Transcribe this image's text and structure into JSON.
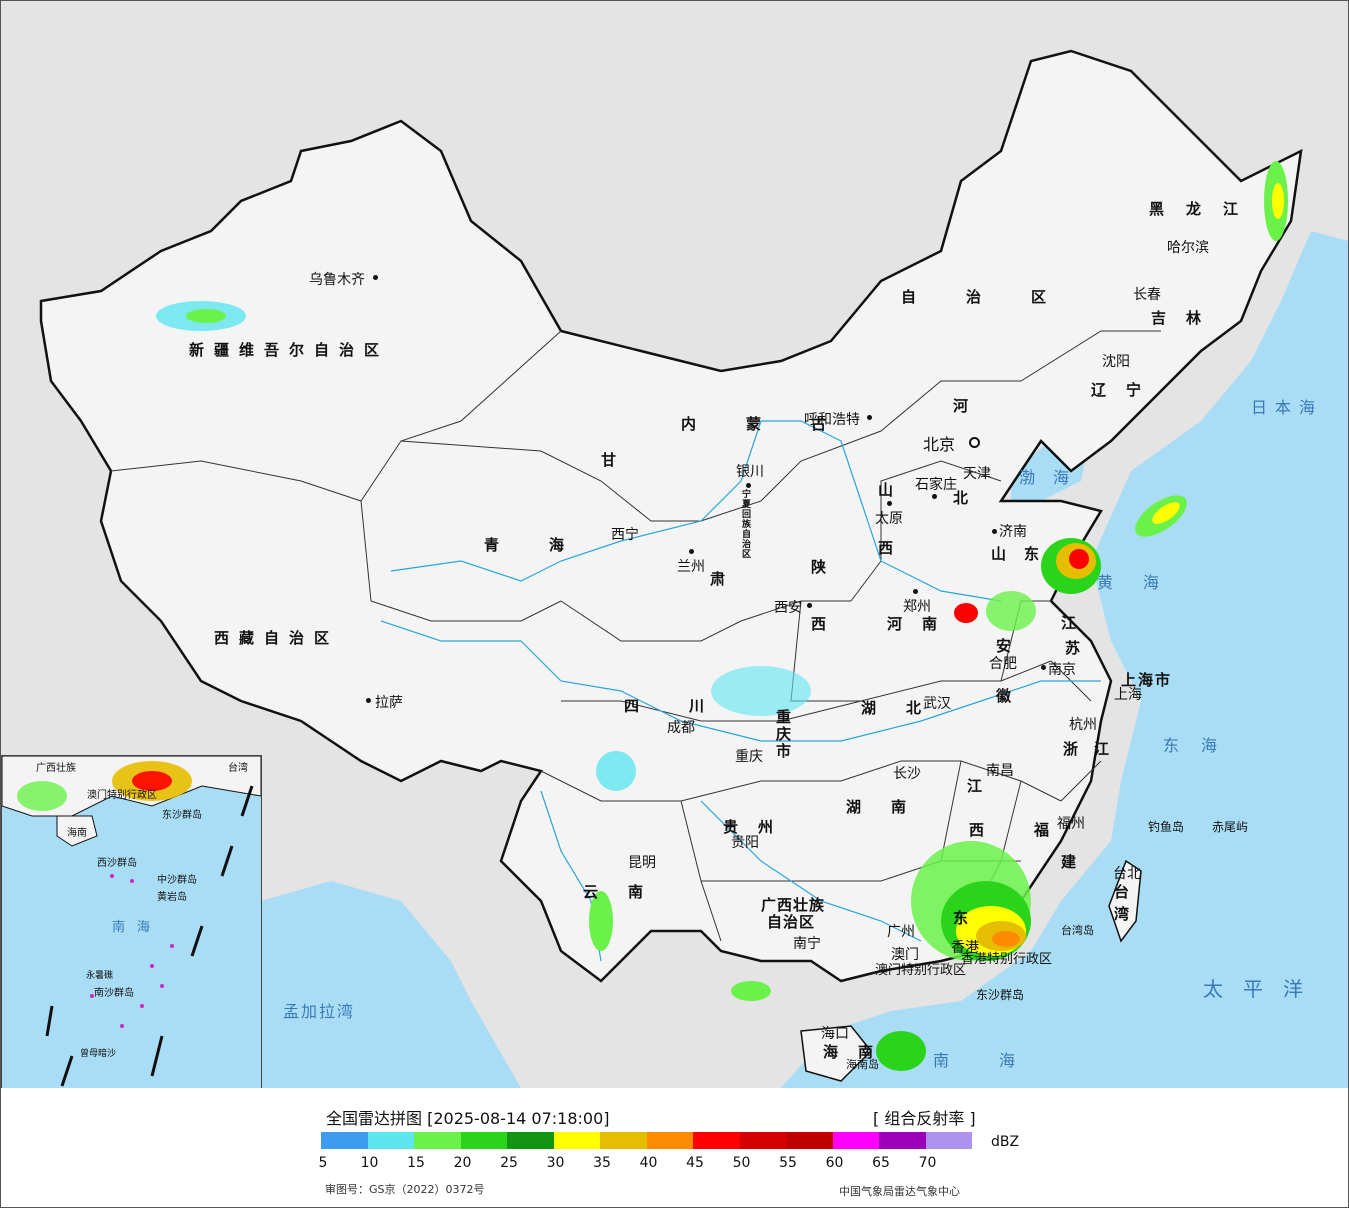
{
  "map": {
    "provinces": [
      {
        "id": "xinjiang",
        "label": "新疆维吾尔自治区"
      },
      {
        "id": "xizang",
        "label": "西藏自治区"
      },
      {
        "id": "qinghai",
        "label": "青海"
      },
      {
        "id": "gansu",
        "label": "甘"
      },
      {
        "id": "gansu2",
        "label": "肃"
      },
      {
        "id": "neimenggu",
        "label": "内蒙古"
      },
      {
        "id": "neimenggu2",
        "label": "自治区"
      },
      {
        "id": "heilongjiang",
        "label": "黑龙江"
      },
      {
        "id": "jilin",
        "label": "吉林"
      },
      {
        "id": "liaoning",
        "label": "辽宁"
      },
      {
        "id": "hebei1",
        "label": "河"
      },
      {
        "id": "hebei2",
        "label": "北"
      },
      {
        "id": "shandong",
        "label": "山东"
      },
      {
        "id": "shanxi1",
        "label": "山"
      },
      {
        "id": "shanxi2",
        "label": "西"
      },
      {
        "id": "shaanxi1",
        "label": "陕"
      },
      {
        "id": "shaanxi2",
        "label": "西"
      },
      {
        "id": "henan",
        "label": "河南"
      },
      {
        "id": "jiangsu1",
        "label": "江"
      },
      {
        "id": "jiangsu2",
        "label": "苏"
      },
      {
        "id": "anhui1",
        "label": "安"
      },
      {
        "id": "anhui2",
        "label": "徽"
      },
      {
        "id": "hubei",
        "label": "湖北"
      },
      {
        "id": "sichuan",
        "label": "四川"
      },
      {
        "id": "chongqing",
        "label": "重庆市"
      },
      {
        "id": "zhejiang",
        "label": "浙江"
      },
      {
        "id": "hunan",
        "label": "湖南"
      },
      {
        "id": "jiangxi1",
        "label": "江"
      },
      {
        "id": "jiangxi2",
        "label": "西"
      },
      {
        "id": "fujian1",
        "label": "福"
      },
      {
        "id": "fujian2",
        "label": "建"
      },
      {
        "id": "guizhou",
        "label": "贵州"
      },
      {
        "id": "yunnan",
        "label": "云南"
      },
      {
        "id": "guangxi",
        "label": "广西壮族"
      },
      {
        "id": "guangxi2",
        "label": "自治区"
      },
      {
        "id": "guangdong",
        "label": "东"
      },
      {
        "id": "hainan",
        "label": "海南"
      },
      {
        "id": "taiwan1",
        "label": "台"
      },
      {
        "id": "taiwan2",
        "label": "湾"
      },
      {
        "id": "shanghai",
        "label": "上海市"
      },
      {
        "id": "ningxia",
        "label": "宁夏回族自治区"
      }
    ],
    "cities": [
      {
        "id": "urumqi",
        "label": "乌鲁木齐"
      },
      {
        "id": "lhasa",
        "label": "拉萨"
      },
      {
        "id": "xining",
        "label": "西宁"
      },
      {
        "id": "lanzhou",
        "label": "兰州"
      },
      {
        "id": "yinchuan",
        "label": "银川"
      },
      {
        "id": "hohhot",
        "label": "呼和浩特"
      },
      {
        "id": "beijing",
        "label": "北京"
      },
      {
        "id": "tianjin",
        "label": "天津"
      },
      {
        "id": "shijiazhuang",
        "label": "石家庄"
      },
      {
        "id": "taiyuan",
        "label": "太原"
      },
      {
        "id": "jinan",
        "label": "济南"
      },
      {
        "id": "zhengzhou",
        "label": "郑州"
      },
      {
        "id": "xian",
        "label": "西安"
      },
      {
        "id": "hefei",
        "label": "合肥"
      },
      {
        "id": "nanjing",
        "label": "南京"
      },
      {
        "id": "shanghai_c",
        "label": "上海"
      },
      {
        "id": "hangzhou",
        "label": "杭州"
      },
      {
        "id": "wuhan",
        "label": "武汉"
      },
      {
        "id": "chengdu",
        "label": "成都"
      },
      {
        "id": "chongqing_c",
        "label": "重庆"
      },
      {
        "id": "changsha",
        "label": "长沙"
      },
      {
        "id": "nanchang",
        "label": "南昌"
      },
      {
        "id": "fuzhou",
        "label": "福州"
      },
      {
        "id": "taibei",
        "label": "台北"
      },
      {
        "id": "guiyang",
        "label": "贵阳"
      },
      {
        "id": "kunming",
        "label": "昆明"
      },
      {
        "id": "nanning",
        "label": "南宁"
      },
      {
        "id": "guangzhou",
        "label": "广州"
      },
      {
        "id": "aomen",
        "label": "澳门"
      },
      {
        "id": "xianggang",
        "label": "香港"
      },
      {
        "id": "haikou",
        "label": "海口"
      },
      {
        "id": "harbin",
        "label": "哈尔滨"
      },
      {
        "id": "changchun",
        "label": "长春"
      },
      {
        "id": "shenyang",
        "label": "沈阳"
      }
    ],
    "seas": [
      {
        "id": "riben",
        "label": "日本海"
      },
      {
        "id": "bohai",
        "label": "渤海"
      },
      {
        "id": "huanghai",
        "label": "黄海"
      },
      {
        "id": "donghai",
        "label": "东海"
      },
      {
        "id": "taipingyang",
        "label": "太平洋"
      },
      {
        "id": "nanhai",
        "label": "南海"
      },
      {
        "id": "mengjiala",
        "label": "孟加拉湾"
      }
    ],
    "islands": [
      {
        "id": "diaoyu",
        "label": "钓鱼岛"
      },
      {
        "id": "chiwei",
        "label": "赤尾屿"
      },
      {
        "id": "dongsha",
        "label": "东沙群岛"
      },
      {
        "id": "taiwan_island",
        "label": "台湾岛"
      },
      {
        "id": "hainan_island",
        "label": "海南岛"
      },
      {
        "id": "xianggang_sar",
        "label": "香港特别行政区"
      },
      {
        "id": "aomen_sar",
        "label": "澳门特别行政区"
      }
    ],
    "inset": {
      "labels": [
        {
          "id": "ins_guangxi",
          "label": "广西壮族"
        },
        {
          "id": "ins_taiwan",
          "label": "台湾"
        },
        {
          "id": "ins_aomen",
          "label": "澳门特别行政区"
        },
        {
          "id": "ins_hainan",
          "label": "海南"
        },
        {
          "id": "ins_dongsha",
          "label": "东沙群岛"
        },
        {
          "id": "ins_xisha",
          "label": "西沙群岛"
        },
        {
          "id": "ins_zhongsha",
          "label": "中沙群岛"
        },
        {
          "id": "ins_huangyan",
          "label": "黄岩岛"
        },
        {
          "id": "ins_nanhai",
          "label": "南海"
        },
        {
          "id": "ins_nansha",
          "label": "南沙群岛"
        },
        {
          "id": "ins_yongshu",
          "label": "永暑礁"
        },
        {
          "id": "ins_zengmu",
          "label": "曾母暗沙"
        }
      ]
    },
    "colors": {
      "land": "#f4f4f4",
      "sea": "#a9ddf5",
      "foreign": "#e4e4e4",
      "border": "#111111",
      "river": "#2aa6d8"
    }
  },
  "legend": {
    "title": "全国雷达拼图 [2025-08-14 07:18:00]",
    "product": "[ 组合反射率 ]",
    "unit": "dBZ",
    "scale_colors": [
      "#3d9cf0",
      "#5ee6f0",
      "#6bf24a",
      "#2ad41a",
      "#129612",
      "#ffff00",
      "#e6be00",
      "#ff8c00",
      "#ff0000",
      "#d60000",
      "#c00000",
      "#ff00ff",
      "#9b00b8",
      "#ad92f0"
    ],
    "ticks": [
      "5",
      "10",
      "15",
      "20",
      "25",
      "30",
      "35",
      "40",
      "45",
      "50",
      "55",
      "60",
      "65",
      "70"
    ],
    "approval": "审图号：GS京（2022）0372号",
    "source": "中国气象局雷达气象中心"
  }
}
